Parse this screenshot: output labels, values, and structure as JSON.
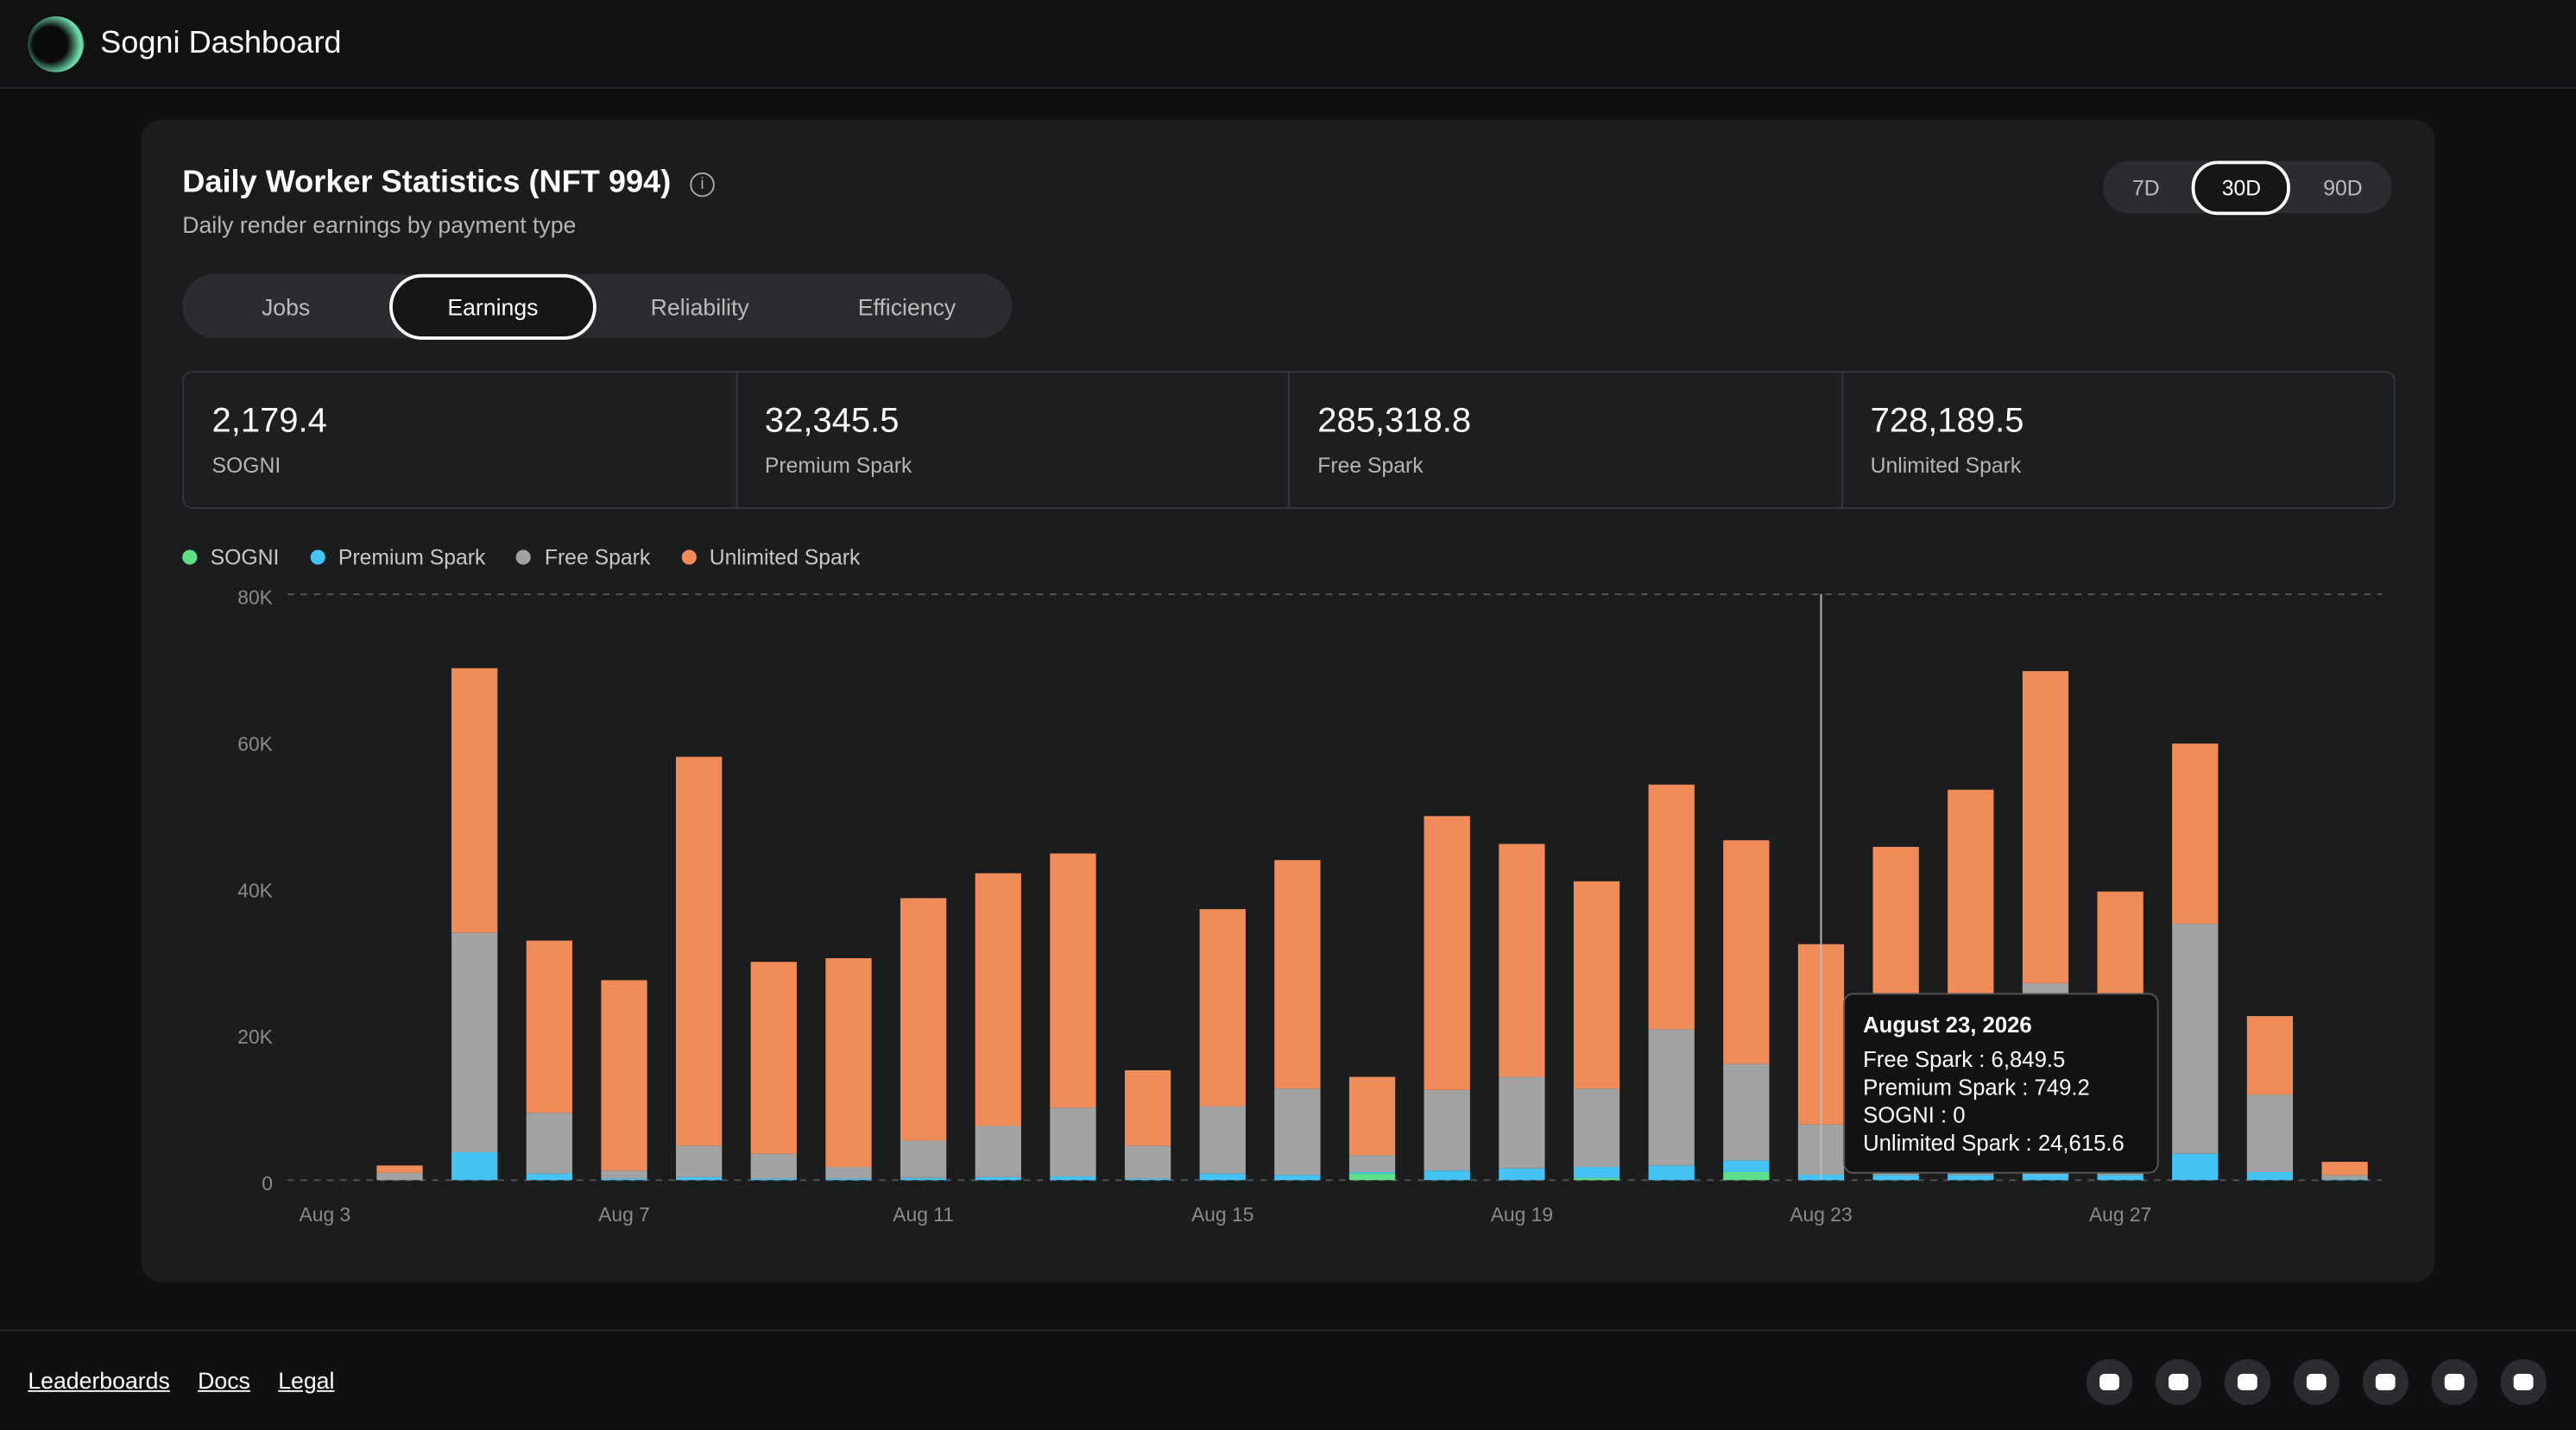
{
  "header": {
    "title": "Sogni Dashboard"
  },
  "panel": {
    "title": "Daily Worker Statistics (NFT 994)",
    "subtitle": "Daily render earnings by payment type"
  },
  "time_ranges": [
    "7D",
    "30D",
    "90D"
  ],
  "tabs": [
    "Jobs",
    "Earnings",
    "Reliability",
    "Efficiency"
  ],
  "stats": [
    {
      "value": "2,179.4",
      "label": "SOGNI"
    },
    {
      "value": "32,345.5",
      "label": "Premium Spark"
    },
    {
      "value": "285,318.8",
      "label": "Free Spark"
    },
    {
      "value": "728,189.5",
      "label": "Unlimited Spark"
    }
  ],
  "chart_data": {
    "type": "bar",
    "stacked": true,
    "grid": false,
    "categories": [
      "Aug 3",
      null,
      null,
      null,
      "Aug 7",
      null,
      null,
      null,
      "Aug 11",
      null,
      null,
      null,
      "Aug 15",
      null,
      null,
      null,
      "Aug 19",
      null,
      null,
      null,
      "Aug 23",
      null,
      null,
      null,
      "Aug 27",
      null,
      null,
      null
    ],
    "series": [
      {
        "name": "SOGNI",
        "color": "#5ee08a",
        "values": [
          0,
          0,
          0,
          0,
          0,
          0,
          0,
          0,
          0,
          0,
          0,
          0,
          0,
          0,
          900,
          0,
          0,
          300,
          0,
          1100,
          0,
          0,
          0,
          0,
          0,
          0,
          0,
          0
        ]
      },
      {
        "name": "Premium Spark",
        "color": "#45c3f5",
        "values": [
          0,
          0,
          3800,
          900,
          200,
          400,
          200,
          200,
          300,
          400,
          500,
          200,
          900,
          700,
          200,
          1300,
          1600,
          1500,
          2000,
          1600,
          749.2,
          700,
          700,
          800,
          700,
          3600,
          1100,
          100
        ]
      },
      {
        "name": "Free Spark",
        "color": "#a3a3a3",
        "values": [
          0,
          1000,
          30000,
          8300,
          1100,
          4300,
          3400,
          1600,
          5100,
          7000,
          9400,
          4500,
          9200,
          11800,
          2300,
          11000,
          12500,
          10700,
          18600,
          13200,
          6849.5,
          8000,
          10000,
          26100,
          10000,
          31400,
          10600,
          600
        ]
      },
      {
        "name": "Unlimited Spark",
        "color": "#f08c5a",
        "values": [
          0,
          1000,
          36100,
          23500,
          26000,
          53100,
          26200,
          28500,
          33100,
          34500,
          34700,
          10300,
          26900,
          31200,
          10700,
          37400,
          31800,
          28300,
          33400,
          30500,
          24615.6,
          36800,
          42600,
          42600,
          28700,
          24600,
          10700,
          1800
        ]
      }
    ],
    "ylim": [
      0,
      80000
    ],
    "yticks": [
      0,
      {
        "value": 20000,
        "label": "20K"
      },
      {
        "value": 40000,
        "label": "40K"
      },
      {
        "value": 60000,
        "label": "60K"
      },
      {
        "value": 80000,
        "label": "80K"
      }
    ]
  },
  "tooltip": {
    "index": 20,
    "title": "August 23, 2026",
    "rows": [
      "Free Spark : 6,849.5",
      "Premium Spark : 749.2",
      "SOGNI : 0",
      "Unlimited Spark : 24,615.6"
    ]
  },
  "footer": {
    "links": [
      "Leaderboards",
      "Docs",
      "Legal"
    ]
  }
}
